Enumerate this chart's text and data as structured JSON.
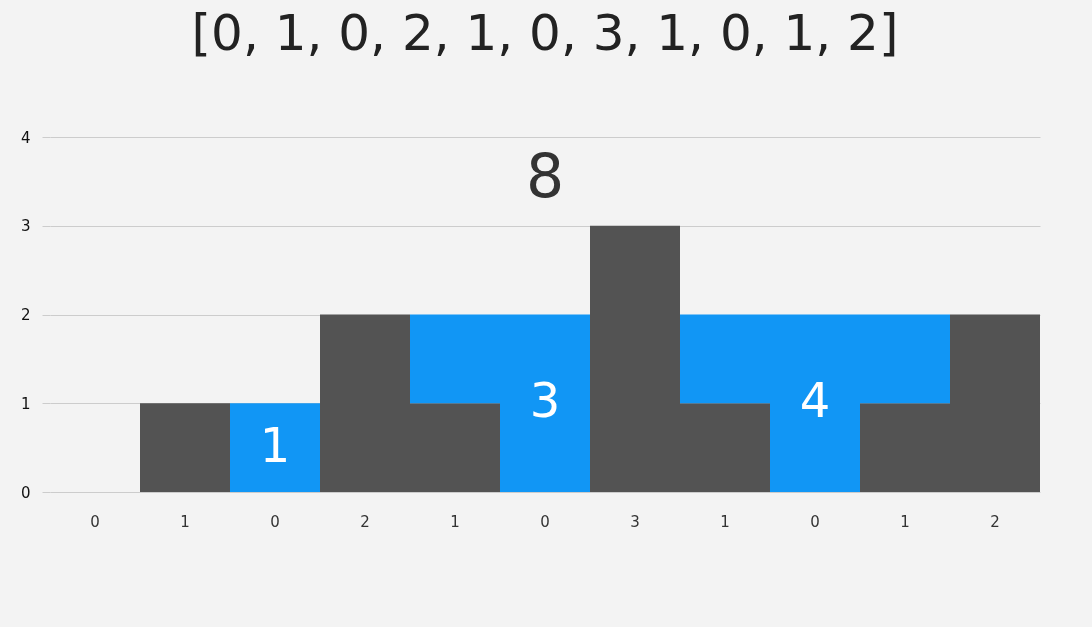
{
  "chart_data": {
    "type": "bar",
    "title": "[0, 1, 0, 2, 1, 0, 3, 1, 0, 1, 2]",
    "categories": [
      "0",
      "1",
      "0",
      "2",
      "1",
      "0",
      "3",
      "1",
      "0",
      "1",
      "2"
    ],
    "series": [
      {
        "color": "#535353",
        "values": [
          0,
          1,
          0,
          2,
          1,
          0,
          3,
          1,
          0,
          1,
          2
        ]
      },
      {
        "color": "#1196f5",
        "values": [
          0,
          0,
          1,
          0,
          1,
          2,
          0,
          1,
          2,
          1,
          0
        ]
      }
    ],
    "stacked": true,
    "ylim": [
      0,
      4
    ],
    "yticks": [
      0,
      1,
      2,
      3,
      4
    ],
    "grid": "y",
    "legend": false,
    "annotations": [
      "1",
      "3",
      "4",
      "8"
    ]
  }
}
